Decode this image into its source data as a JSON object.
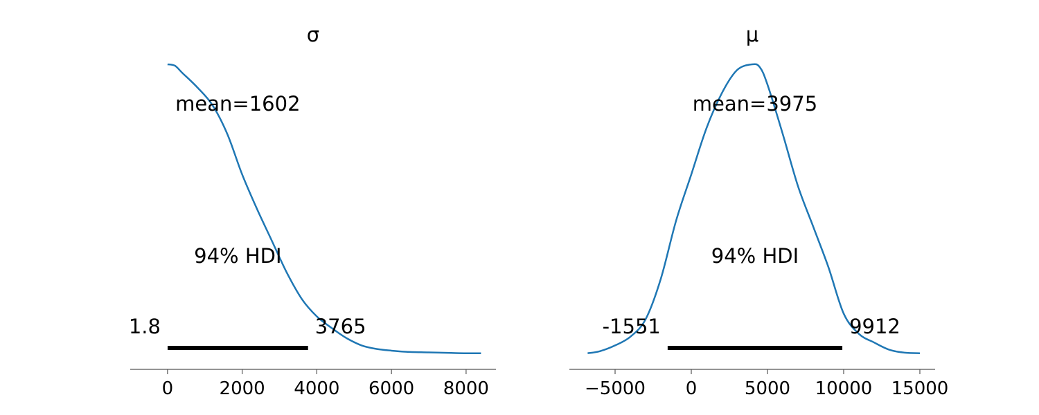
{
  "chart_data": [
    {
      "type": "area",
      "title": "σ",
      "xlim": [
        -1000,
        8800
      ],
      "ticks": [
        0,
        2000,
        4000,
        6000,
        8000
      ],
      "tick_labels": [
        "0",
        "2000",
        "4000",
        "6000",
        "8000"
      ],
      "density": {
        "x": [
          0,
          200,
          400,
          800,
          1200,
          1600,
          2000,
          2400,
          2800,
          3200,
          3600,
          4000,
          4400,
          4800,
          5200,
          5600,
          6000,
          6400,
          7000,
          7600,
          8000,
          8400
        ],
        "y": [
          1.0,
          0.995,
          0.97,
          0.92,
          0.86,
          0.76,
          0.62,
          0.5,
          0.39,
          0.28,
          0.19,
          0.13,
          0.09,
          0.055,
          0.03,
          0.018,
          0.012,
          0.008,
          0.006,
          0.004,
          0.003,
          0.003
        ]
      },
      "mean_label": "mean=1602",
      "hdi_label": "94% HDI",
      "hdi": [
        1.8,
        3765
      ],
      "hdi_low_label": "1.8",
      "hdi_high_label": "3765",
      "color": "#1f77b4"
    },
    {
      "type": "area",
      "title": "μ",
      "xlim": [
        -8000,
        16000
      ],
      "ticks": [
        -5000,
        0,
        5000,
        10000,
        15000
      ],
      "tick_labels": [
        "−5000",
        "0",
        "5000",
        "10000",
        "15000"
      ],
      "density": {
        "x": [
          -6800,
          -6000,
          -5000,
          -4000,
          -3000,
          -2000,
          -1000,
          0,
          1000,
          2000,
          3000,
          4000,
          4500,
          5000,
          6000,
          7000,
          8000,
          9000,
          10000,
          11000,
          12000,
          13000,
          14000,
          15000
        ],
        "y": [
          0.003,
          0.01,
          0.03,
          0.06,
          0.12,
          0.26,
          0.46,
          0.62,
          0.78,
          0.9,
          0.98,
          1.0,
          0.99,
          0.93,
          0.76,
          0.58,
          0.44,
          0.3,
          0.14,
          0.07,
          0.04,
          0.015,
          0.005,
          0.003
        ]
      },
      "mean_label": "mean=3975",
      "hdi_label": "94% HDI",
      "hdi": [
        -1551,
        9912
      ],
      "hdi_low_label": "-1551",
      "hdi_high_label": "9912",
      "color": "#1f77b4"
    }
  ]
}
